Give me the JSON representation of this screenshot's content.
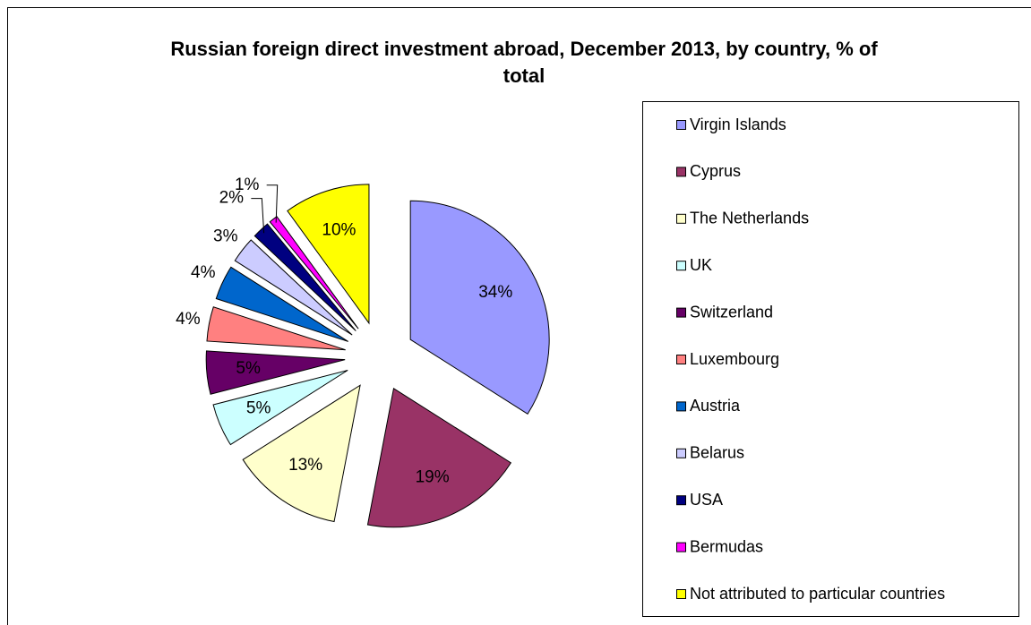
{
  "chart_data": {
    "type": "pie",
    "title": "Russian foreign direct investment abroad, December 2013, by country, % of total",
    "categories": [
      "Virgin Islands",
      "Cyprus",
      "The Netherlands",
      "UK",
      "Switzerland",
      "Luxembourg",
      "Austria",
      "Belarus",
      "USA",
      "Bermudas",
      "Not attributed to particular countries"
    ],
    "values": [
      34,
      19,
      13,
      5,
      5,
      4,
      4,
      3,
      2,
      1,
      10
    ],
    "value_labels": [
      "34%",
      "19%",
      "13%",
      "5%",
      "5%",
      "4%",
      "4%",
      "3%",
      "2%",
      "1%",
      "10%"
    ],
    "colors": [
      "#9999ff",
      "#993366",
      "#ffffcc",
      "#ccffff",
      "#660066",
      "#ff8080",
      "#0066cc",
      "#ccccff",
      "#000080",
      "#ff00ff",
      "#ffff00"
    ],
    "legend": "right"
  }
}
